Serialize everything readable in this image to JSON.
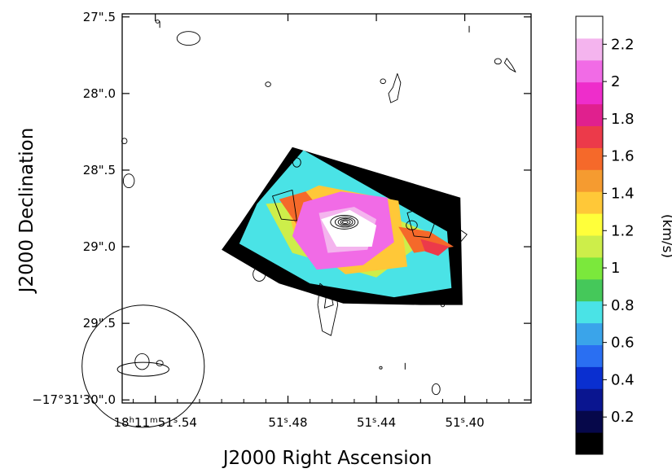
{
  "chart_data": {
    "type": "heatmap",
    "title": "",
    "xlabel": "J2000 Right Ascension",
    "ylabel": "J2000 Declination",
    "x_ticks": [
      {
        "label": "18h11m51s.54",
        "value": 51.54
      },
      {
        "label": "51s.48",
        "value": 51.48
      },
      {
        "label": "51s.44",
        "value": 51.44
      },
      {
        "label": "51s.40",
        "value": 51.4
      }
    ],
    "x_tick_parts": [
      {
        "label": "18h11m51s.54",
        "parts": [
          [
            "18",
            ""
          ],
          [
            "h",
            "sup"
          ],
          [
            "11",
            ""
          ],
          [
            "m",
            "sup"
          ],
          [
            "51",
            ""
          ],
          [
            "s",
            "sup"
          ],
          [
            ".54",
            ""
          ]
        ]
      },
      {
        "label": "51s.48",
        "parts": [
          [
            "51",
            ""
          ],
          [
            "s",
            "sup"
          ],
          [
            ".48",
            ""
          ]
        ]
      },
      {
        "label": "51s.44",
        "parts": [
          [
            "51",
            ""
          ],
          [
            "s",
            "sup"
          ],
          [
            ".44",
            ""
          ]
        ]
      },
      {
        "label": "51s.40",
        "parts": [
          [
            "51",
            ""
          ],
          [
            "s",
            "sup"
          ],
          [
            ".40",
            ""
          ]
        ]
      }
    ],
    "y_ticks": [
      {
        "label": "27\".5",
        "value": 27.5
      },
      {
        "label": "28\".0",
        "value": 28.0
      },
      {
        "label": "28\".5",
        "value": 28.5
      },
      {
        "label": "29\".0",
        "value": 29.0
      },
      {
        "label": "29\".5",
        "value": 29.5
      },
      {
        "label": "−17°31'30\".0",
        "value": 30.0
      }
    ],
    "xlim": [
      51.555,
      51.37
    ],
    "ylim": [
      27.48,
      30.02
    ],
    "colorbar": {
      "label": "(km/s)",
      "range": [
        0,
        2.35
      ],
      "tick_labels": [
        "2.2",
        "2",
        "1.8",
        "1.6",
        "1.4",
        "1.2",
        "1",
        "0.8",
        "0.6",
        "0.4",
        "0.2"
      ],
      "tick_values": [
        2.2,
        2.0,
        1.8,
        1.6,
        1.4,
        1.2,
        1.0,
        0.8,
        0.6,
        0.4,
        0.2
      ],
      "colors": [
        "#000000",
        "#06084a",
        "#0a1590",
        "#0a2fd0",
        "#2a6ff2",
        "#3aa4ea",
        "#4ae3e6",
        "#45c85a",
        "#7be83c",
        "#cdee4a",
        "#ffff3a",
        "#ffc838",
        "#f59b30",
        "#f5692a",
        "#ec3a4a",
        "#e0208e",
        "#ee2dcb",
        "#f16be6",
        "#f4b4ee",
        "#ffffff"
      ]
    },
    "velocity_dispersion_regions": [
      {
        "level": 0.05,
        "ra": [
          51.502,
          51.478,
          51.402,
          51.401,
          51.42,
          51.455,
          51.484,
          51.51
        ],
        "dec": [
          28.86,
          28.35,
          28.68,
          29.38,
          29.38,
          29.37,
          29.24,
          29.02
        ]
      },
      {
        "level": 0.8,
        "ra": [
          51.494,
          51.473,
          51.408,
          51.406,
          51.432,
          51.47,
          51.502
        ],
        "dec": [
          28.72,
          28.37,
          28.9,
          29.27,
          29.33,
          29.24,
          28.98
        ]
      },
      {
        "level": 1.1,
        "ra": [
          51.49,
          51.455,
          51.414,
          51.44,
          51.478
        ],
        "dec": [
          28.72,
          28.68,
          28.92,
          29.2,
          29.04
        ]
      },
      {
        "level": 1.35,
        "ra": [
          51.481,
          51.466,
          51.43,
          51.426,
          51.454,
          51.477
        ],
        "dec": [
          28.7,
          28.6,
          28.7,
          29.13,
          29.18,
          28.92
        ]
      },
      {
        "level": 1.6,
        "ra": [
          51.416,
          51.405,
          51.423,
          51.43
        ],
        "dec": [
          28.9,
          29.0,
          29.04,
          28.87
        ]
      },
      {
        "level": 1.6,
        "ra": [
          51.484,
          51.472,
          51.458,
          51.47
        ],
        "dec": [
          28.69,
          28.64,
          28.88,
          28.98
        ]
      },
      {
        "level": 1.7,
        "ra": [
          51.42,
          51.407,
          51.412,
          51.418
        ],
        "dec": [
          28.95,
          29.0,
          29.06,
          29.03
        ]
      },
      {
        "level": 2.0,
        "ra": [
          51.473,
          51.456,
          51.435,
          51.432,
          51.446,
          51.467,
          51.478
        ],
        "dec": [
          28.71,
          28.64,
          28.68,
          28.97,
          29.12,
          29.15,
          28.93
        ]
      },
      {
        "level": 2.15,
        "ra": [
          51.466,
          51.45,
          51.44,
          51.444,
          51.462
        ],
        "dec": [
          28.78,
          28.74,
          28.82,
          29.02,
          29.04
        ]
      },
      {
        "level": 2.35,
        "ra": [
          51.465,
          51.452,
          51.44,
          51.442,
          51.458
        ],
        "dec": [
          28.82,
          28.76,
          28.86,
          29.0,
          29.0
        ]
      }
    ],
    "peak": {
      "ra": 51.4545,
      "dec": 28.84
    },
    "compact_contours": [
      {
        "ra": 51.525,
        "dec": 27.64,
        "dra": 0.0052,
        "ddec": 0.045
      },
      {
        "ra": 51.489,
        "dec": 27.94,
        "dra": 0.0012,
        "ddec": 0.015
      },
      {
        "ra": 51.437,
        "dec": 27.92,
        "dra": 0.0012,
        "ddec": 0.015
      },
      {
        "ra": 51.385,
        "dec": 27.79,
        "dra": 0.0015,
        "ddec": 0.018
      },
      {
        "ra": 51.554,
        "dec": 28.31,
        "dra": 0.0012,
        "ddec": 0.018
      },
      {
        "ra": 51.552,
        "dec": 28.57,
        "dra": 0.0025,
        "ddec": 0.045
      },
      {
        "ra": 51.493,
        "dec": 29.18,
        "dra": 0.0028,
        "ddec": 0.045
      },
      {
        "ra": 51.546,
        "dec": 29.75,
        "dra": 0.0032,
        "ddec": 0.052
      },
      {
        "ra": 51.538,
        "dec": 29.76,
        "dra": 0.0015,
        "ddec": 0.018
      },
      {
        "ra": 51.413,
        "dec": 29.93,
        "dra": 0.0018,
        "ddec": 0.035
      },
      {
        "ra": 51.41,
        "dec": 29.38,
        "dra": 0.0008,
        "ddec": 0.012
      },
      {
        "ra": 51.438,
        "dec": 29.79,
        "dra": 0.0006,
        "ddec": 0.008
      },
      {
        "ra": 51.539,
        "dec": 27.53,
        "dra": 0.0008,
        "ddec": 0.01
      },
      {
        "ra": 51.476,
        "dec": 28.45,
        "dra": 0.0018,
        "ddec": 0.03
      },
      {
        "ra": 51.424,
        "dec": 28.86,
        "dra": 0.0025,
        "ddec": 0.03
      }
    ],
    "extended_contours": [
      {
        "ra": [
          51.4325,
          51.4305,
          51.429,
          51.4305,
          51.4335,
          51.4345
        ],
        "dec": [
          27.96,
          27.87,
          27.93,
          28.04,
          28.06,
          28.0
        ]
      },
      {
        "ra": [
          51.4655,
          51.463,
          51.4585,
          51.4575,
          51.4605,
          51.4645,
          51.4665
        ],
        "dec": [
          29.24,
          29.27,
          29.27,
          29.38,
          29.58,
          29.55,
          29.38
        ]
      },
      {
        "ra": [
          51.4625,
          51.4605,
          51.4595,
          51.4635
        ],
        "dec": [
          29.3,
          29.31,
          29.38,
          29.4
        ]
      },
      {
        "ra": [
          51.381,
          51.3785,
          51.377,
          51.3795,
          51.382
        ],
        "dec": [
          27.77,
          27.82,
          27.86,
          27.84,
          27.8
        ]
      },
      {
        "ra": [
          51.426,
          51.418,
          51.413,
          51.416,
          51.423
        ],
        "dec": [
          28.78,
          28.74,
          28.82,
          28.94,
          28.93
        ]
      },
      {
        "ra": [
          51.487,
          51.478,
          51.476,
          51.483
        ],
        "dec": [
          28.67,
          28.63,
          28.83,
          28.82
        ]
      },
      {
        "ra": [
          51.404,
          51.399,
          51.402,
          51.405
        ],
        "dec": [
          28.87,
          28.92,
          28.97,
          28.92
        ]
      }
    ],
    "core_contours": [
      0.008,
      0.0058,
      0.0042,
      0.0028,
      0.0016
    ],
    "beam": {
      "ra": 51.5455,
      "dec": 29.8,
      "major": 0.035,
      "minor": 0.015
    },
    "beam_circle": {
      "ra": 51.5455,
      "dec": 29.78,
      "radius": 0.083
    },
    "tiny_ticks": [
      {
        "ra": 51.538,
        "dec": 27.55
      },
      {
        "ra": 51.427,
        "dec": 29.78
      },
      {
        "ra": 51.398,
        "dec": 27.58
      }
    ]
  }
}
